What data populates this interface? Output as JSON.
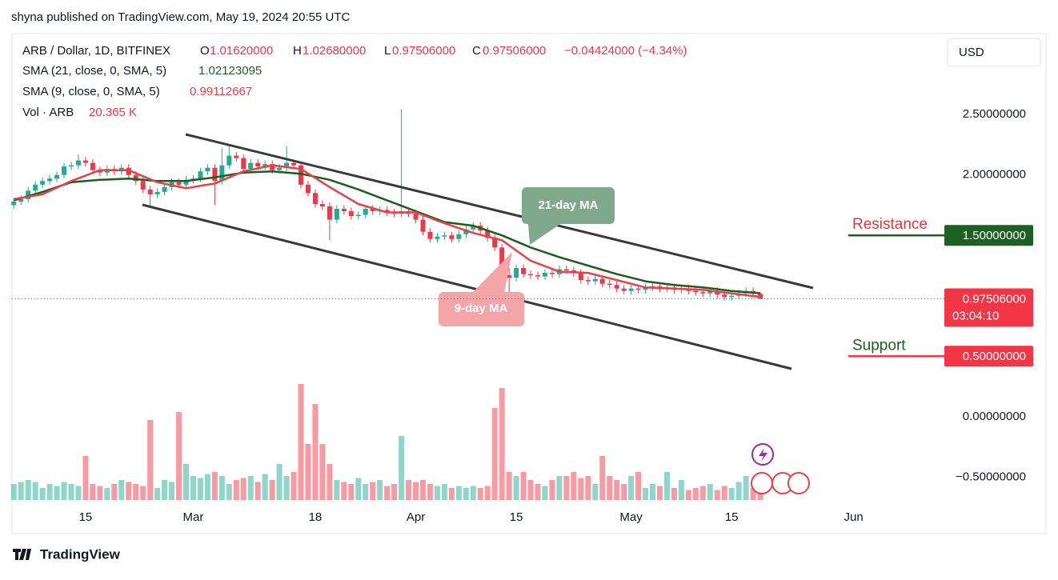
{
  "header": {
    "byline": "shyna published on TradingView.com, May 19, 2024 20:55 UTC",
    "currency": "USD",
    "brand": "TradingView"
  },
  "chart_data": {
    "type": "candlestick",
    "title": "ARB / Dollar, 1D, BITFINEX",
    "ohlc": [
      {
        "key": "O",
        "value": "1.01620000"
      },
      {
        "key": "H",
        "value": "1.02680000"
      },
      {
        "key": "L",
        "value": "0.97506000"
      },
      {
        "key": "C",
        "value": "0.97506000"
      }
    ],
    "change": "−0.04424000 (−4.34%)",
    "open": [
      1.75,
      1.78,
      1.8,
      1.87,
      1.92,
      1.95,
      1.97,
      2.0,
      2.07,
      2.08,
      2.12,
      2.1,
      2.04,
      2.02,
      2.05,
      2.03,
      2.06,
      2.0,
      1.95,
      1.88,
      1.84,
      1.86,
      1.9,
      1.94,
      1.92,
      1.96,
      1.97,
      2.03,
      2.06,
      1.95,
      2.08,
      2.16,
      2.14,
      2.05,
      2.1,
      2.07,
      2.09,
      2.04,
      2.06,
      2.1,
      2.08,
      1.92,
      1.85,
      1.76,
      1.74,
      1.63,
      1.72,
      1.7,
      1.66,
      1.67,
      1.72,
      1.7,
      1.71,
      1.69,
      1.68,
      1.7,
      1.68,
      1.63,
      1.53,
      1.47,
      1.49,
      1.5,
      1.47,
      1.51,
      1.55,
      1.58,
      1.54,
      1.48,
      1.4,
      1.17,
      1.15,
      1.23,
      1.18,
      1.17,
      1.16,
      1.19,
      1.18,
      1.22,
      1.21,
      1.19,
      1.13,
      1.12,
      1.14,
      1.1,
      1.09,
      1.06,
      1.04,
      1.06,
      1.05,
      1.07,
      1.08,
      1.06,
      1.07,
      1.05,
      1.06,
      1.04,
      1.03,
      1.02,
      1.04,
      1.01,
      0.99,
      1.0,
      1.02,
      1.04,
      1.0162
    ],
    "high": [
      1.81,
      1.83,
      1.9,
      1.95,
      1.98,
      2.0,
      2.03,
      2.1,
      2.11,
      2.17,
      2.15,
      2.13,
      2.07,
      2.08,
      2.08,
      2.09,
      2.09,
      2.03,
      1.98,
      1.91,
      1.89,
      1.93,
      1.97,
      1.97,
      1.99,
      2.0,
      2.06,
      2.09,
      2.09,
      2.22,
      2.25,
      2.19,
      2.17,
      2.13,
      2.13,
      2.12,
      2.12,
      2.09,
      2.24,
      2.13,
      2.11,
      1.95,
      1.88,
      1.79,
      1.77,
      1.75,
      1.75,
      1.73,
      1.7,
      1.75,
      1.75,
      1.74,
      1.74,
      1.72,
      2.54,
      1.73,
      1.71,
      1.66,
      1.56,
      1.52,
      1.53,
      1.53,
      1.54,
      1.58,
      1.61,
      1.61,
      1.57,
      1.51,
      1.43,
      1.23,
      1.26,
      1.26,
      1.21,
      1.2,
      1.22,
      1.22,
      1.25,
      1.25,
      1.24,
      1.22,
      1.16,
      1.17,
      1.17,
      1.13,
      1.12,
      1.09,
      1.09,
      1.09,
      1.1,
      1.11,
      1.11,
      1.1,
      1.1,
      1.09,
      1.09,
      1.07,
      1.06,
      1.07,
      1.07,
      1.04,
      1.03,
      1.05,
      1.07,
      1.07,
      1.0268
    ],
    "low": [
      1.72,
      1.75,
      1.77,
      1.84,
      1.89,
      1.92,
      1.94,
      1.97,
      2.04,
      2.05,
      2.07,
      2.01,
      1.99,
      1.99,
      2.0,
      2.0,
      1.97,
      1.92,
      1.85,
      1.74,
      1.81,
      1.83,
      1.87,
      1.89,
      1.89,
      1.93,
      1.94,
      2.0,
      1.75,
      1.92,
      2.05,
      2.11,
      2.02,
      2.02,
      2.04,
      2.04,
      2.01,
      2.01,
      2.03,
      2.05,
      1.89,
      1.82,
      1.73,
      1.71,
      1.46,
      1.6,
      1.67,
      1.63,
      1.63,
      1.64,
      1.67,
      1.67,
      1.66,
      1.65,
      1.65,
      1.65,
      1.6,
      1.5,
      1.44,
      1.44,
      1.46,
      1.44,
      1.44,
      1.48,
      1.52,
      1.51,
      1.45,
      1.37,
      1.14,
      0.98,
      1.12,
      1.15,
      1.14,
      1.13,
      1.13,
      1.15,
      1.15,
      1.18,
      1.16,
      1.1,
      1.09,
      1.09,
      1.07,
      1.06,
      1.03,
      1.01,
      1.01,
      1.02,
      1.02,
      1.04,
      1.03,
      1.03,
      1.02,
      1.02,
      1.01,
      1.0,
      0.99,
      0.99,
      0.98,
      0.96,
      0.96,
      0.97,
      0.99,
      0.99,
      0.97506
    ],
    "close": [
      1.78,
      1.8,
      1.87,
      1.92,
      1.95,
      1.97,
      2.0,
      2.07,
      2.08,
      2.12,
      2.1,
      2.04,
      2.02,
      2.05,
      2.03,
      2.06,
      2.0,
      1.95,
      1.88,
      1.84,
      1.86,
      1.9,
      1.94,
      1.92,
      1.96,
      1.97,
      2.03,
      2.06,
      1.95,
      2.08,
      2.16,
      2.14,
      2.05,
      2.1,
      2.07,
      2.09,
      2.04,
      2.06,
      2.1,
      2.08,
      1.92,
      1.85,
      1.76,
      1.74,
      1.63,
      1.72,
      1.7,
      1.66,
      1.67,
      1.72,
      1.7,
      1.71,
      1.69,
      1.68,
      1.7,
      1.68,
      1.63,
      1.53,
      1.47,
      1.49,
      1.5,
      1.47,
      1.51,
      1.55,
      1.58,
      1.54,
      1.48,
      1.4,
      1.17,
      1.15,
      1.23,
      1.18,
      1.17,
      1.16,
      1.19,
      1.18,
      1.22,
      1.21,
      1.19,
      1.13,
      1.12,
      1.14,
      1.1,
      1.09,
      1.06,
      1.04,
      1.06,
      1.05,
      1.07,
      1.08,
      1.06,
      1.07,
      1.05,
      1.06,
      1.04,
      1.03,
      1.02,
      1.04,
      1.01,
      0.99,
      1.0,
      1.02,
      1.04,
      1.0162,
      0.97506
    ],
    "volume": [
      40,
      45,
      50,
      45,
      30,
      40,
      35,
      45,
      40,
      35,
      110,
      40,
      35,
      30,
      40,
      50,
      45,
      40,
      35,
      200,
      30,
      50,
      45,
      220,
      90,
      60,
      55,
      65,
      70,
      60,
      40,
      50,
      55,
      60,
      45,
      65,
      50,
      90,
      60,
      70,
      290,
      140,
      240,
      140,
      90,
      50,
      45,
      40,
      55,
      40,
      45,
      50,
      35,
      40,
      160,
      50,
      45,
      50,
      40,
      35,
      40,
      30,
      35,
      30,
      35,
      30,
      35,
      230,
      280,
      70,
      60,
      70,
      50,
      40,
      35,
      50,
      60,
      60,
      70,
      55,
      60,
      40,
      110,
      60,
      50,
      40,
      60,
      70,
      30,
      40,
      35,
      70,
      30,
      50,
      25,
      30,
      35,
      40,
      25,
      35,
      30,
      45,
      60,
      30,
      20.365
    ],
    "volume_name": "Vol · ARB",
    "volume_label": "20.365 K",
    "volume_ylim": [
      0,
      300
    ],
    "up_color": "#22ab94",
    "down_color": "#f23645",
    "sma": [
      {
        "name": "SMA (21, close, 0, SMA, 5)",
        "value_label": "1.02123095",
        "color": "#1b5e20",
        "x": [
          0,
          4,
          8,
          12,
          16,
          20,
          24,
          28,
          32,
          36,
          40,
          44,
          48,
          52,
          56,
          60,
          64,
          68,
          72,
          76,
          80,
          84,
          88,
          92,
          96,
          100,
          104
        ],
        "values": [
          1.79,
          1.86,
          1.94,
          1.96,
          1.97,
          1.95,
          1.95,
          1.98,
          2.02,
          2.03,
          2.01,
          1.96,
          1.88,
          1.79,
          1.7,
          1.61,
          1.58,
          1.5,
          1.4,
          1.32,
          1.25,
          1.18,
          1.12,
          1.09,
          1.07,
          1.04,
          1.02123095
        ]
      },
      {
        "name": "SMA (9, close, 0, SMA, 5)",
        "value_label": "0.99112667",
        "color": "#e8414a",
        "x": [
          0,
          4,
          8,
          12,
          16,
          20,
          24,
          28,
          32,
          36,
          40,
          44,
          48,
          52,
          56,
          60,
          64,
          68,
          72,
          76,
          80,
          84,
          88,
          92,
          96,
          100,
          104
        ],
        "values": [
          1.8,
          1.84,
          1.95,
          2.04,
          2.04,
          1.94,
          1.89,
          1.93,
          2.03,
          2.08,
          2.05,
          1.9,
          1.76,
          1.69,
          1.69,
          1.6,
          1.52,
          1.46,
          1.29,
          1.2,
          1.19,
          1.13,
          1.07,
          1.06,
          1.05,
          1.02,
          0.99112667
        ]
      }
    ],
    "xlim": [
      -0.25,
      128.3
    ],
    "xticks": [
      {
        "value": 10,
        "label": "15"
      },
      {
        "value": 25,
        "label": "Mar"
      },
      {
        "value": 42,
        "label": "18"
      },
      {
        "value": 56,
        "label": "Apr"
      },
      {
        "value": 70,
        "label": "15"
      },
      {
        "value": 86,
        "label": "May"
      },
      {
        "value": 100,
        "label": "15"
      },
      {
        "value": 117,
        "label": "Jun"
      }
    ],
    "ylim": [
      -0.69,
      3.17
    ],
    "yticks": [
      {
        "value": 2.5,
        "label": "2.50000000"
      },
      {
        "value": 2,
        "label": "2.00000000"
      },
      {
        "value": 0,
        "label": "0.00000000"
      },
      {
        "value": -0.5,
        "label": "−0.50000000"
      }
    ],
    "last_price": {
      "value": 0.97506,
      "label": "0.97506000",
      "countdown": "03:04:10"
    },
    "levels": [
      {
        "name": "Resistance",
        "value": 1.5,
        "label": "1.50000000",
        "color": "#1e5f24",
        "text_color": "#e03a3e"
      },
      {
        "name": "Support",
        "value": 0.5,
        "label": "0.50000000",
        "color": "#f23645",
        "text_color": "#1e5f24"
      }
    ],
    "annotations": [
      "21-day MA",
      "9-day MA"
    ],
    "grid": false
  }
}
